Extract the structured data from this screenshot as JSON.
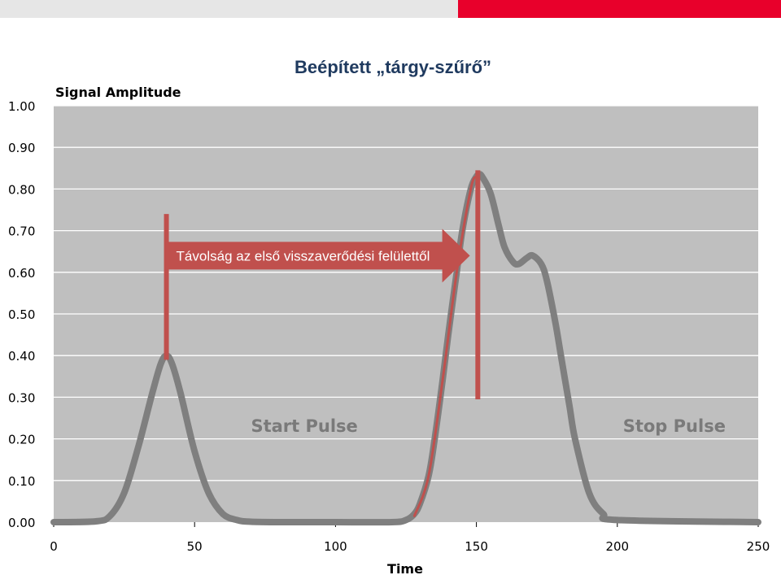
{
  "slide": {
    "title": "Beépített „tárgy-szűrő”",
    "accent_color": "#e8002b",
    "title_color": "#1f3a5f"
  },
  "chart_data": {
    "type": "line",
    "title": "",
    "ylabel": "Signal Amplitude",
    "xlabel": "Time",
    "xlim": [
      0,
      250
    ],
    "ylim": [
      0,
      1
    ],
    "xticks": [
      0,
      50,
      100,
      150,
      200,
      250
    ],
    "yticks": [
      "0.00",
      "0.10",
      "0.20",
      "0.30",
      "0.40",
      "0.50",
      "0.60",
      "0.70",
      "0.80",
      "0.90",
      "1.00"
    ],
    "grid": true,
    "background_color": "#bfbfbf",
    "series": [
      {
        "color": "#7f7f7f",
        "x": [
          0,
          15,
          20,
          25,
          30,
          35,
          38,
          40,
          42,
          45,
          50,
          55,
          60,
          65,
          70,
          80,
          100,
          120,
          125,
          128,
          130,
          133,
          135,
          138,
          140,
          143,
          145,
          148,
          150,
          151,
          152,
          155,
          158,
          160,
          163,
          165,
          168,
          170,
          173,
          175,
          178,
          180,
          183,
          185,
          190,
          195,
          200,
          250
        ],
        "y": [
          0,
          0.002,
          0.015,
          0.07,
          0.18,
          0.31,
          0.38,
          0.4,
          0.38,
          0.31,
          0.17,
          0.07,
          0.02,
          0.005,
          0.001,
          0,
          0,
          0,
          0.005,
          0.02,
          0.045,
          0.11,
          0.19,
          0.34,
          0.45,
          0.6,
          0.7,
          0.8,
          0.83,
          0.835,
          0.83,
          0.79,
          0.71,
          0.66,
          0.625,
          0.62,
          0.635,
          0.64,
          0.62,
          0.58,
          0.48,
          0.4,
          0.28,
          0.2,
          0.07,
          0.02,
          0.005,
          0
        ]
      }
    ],
    "annotations": [
      {
        "text": "Start Pulse",
        "x": 70,
        "y": 0.23
      },
      {
        "text": "Stop Pulse",
        "x": 202,
        "y": 0.23
      },
      {
        "text": "Távolság az első visszaverődési felülettől",
        "x_from": 40,
        "x_to": 150,
        "y": 0.64,
        "color": "#c0504d"
      }
    ],
    "markers": [
      {
        "x": 40,
        "y_from": 0.39,
        "y_to": 0.74,
        "color": "#c0504d"
      },
      {
        "x": 150.5,
        "y_from": 0.295,
        "y_to": 0.845,
        "color": "#c0504d"
      }
    ],
    "red_overlay": {
      "color": "#c0504d",
      "x": [
        128,
        133,
        138,
        143,
        148,
        150
      ],
      "y": [
        0.015,
        0.11,
        0.34,
        0.6,
        0.8,
        0.83
      ]
    }
  }
}
